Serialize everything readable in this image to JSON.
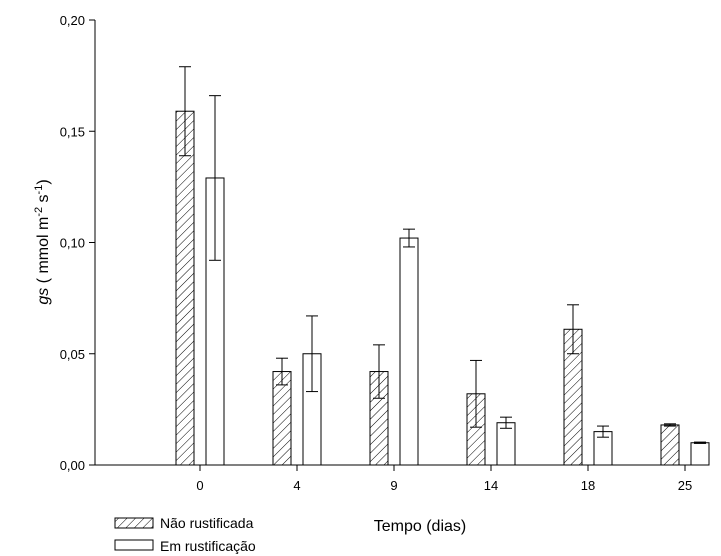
{
  "chart_data": {
    "type": "bar",
    "categories": [
      "0",
      "4",
      "9",
      "14",
      "18",
      "25"
    ],
    "xlabel": "Tempo (dias)",
    "ylabel": {
      "italic": "gs",
      "open": " ( mmol m",
      "sup1": "-2",
      "mid": " s",
      "sup2": "-1",
      "close": ")"
    },
    "ylim": [
      0,
      0.2
    ],
    "yticks": [
      {
        "value": 0.0,
        "label": "0,00"
      },
      {
        "value": 0.05,
        "label": "0,05"
      },
      {
        "value": 0.1,
        "label": "0,10"
      },
      {
        "value": 0.15,
        "label": "0,15"
      },
      {
        "value": 0.2,
        "label": "0,20"
      }
    ],
    "grid": false,
    "legend": "bottom-left",
    "series": [
      {
        "name": "Não rustificada",
        "pattern": "hatched",
        "values": [
          0.159,
          0.042,
          0.042,
          0.032,
          0.061,
          0.018
        ],
        "errors": [
          0.02,
          0.006,
          0.012,
          0.015,
          0.011,
          0.0005
        ]
      },
      {
        "name": "Em rustificação",
        "pattern": "open",
        "values": [
          0.129,
          0.05,
          0.102,
          0.019,
          0.015,
          0.01
        ],
        "errors": [
          0.037,
          0.017,
          0.004,
          0.0025,
          0.0025,
          0.0003
        ]
      }
    ],
    "colors": {
      "stroke": "#000000",
      "fill": "#ffffff"
    }
  }
}
